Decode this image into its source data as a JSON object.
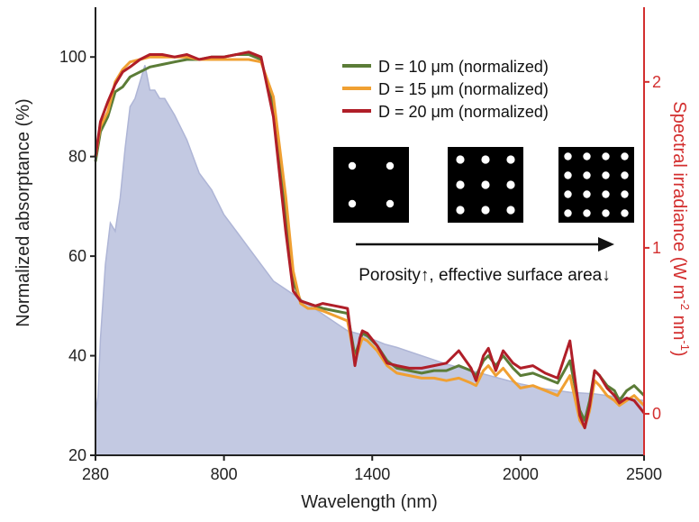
{
  "chart_data": {
    "type": "line",
    "xlabel": "Wavelength (nm)",
    "ylabel": "Normalized absorptance (%)",
    "y2label_parts": [
      "Spectral irradiance (W m",
      "-2",
      " nm",
      "-1",
      ")"
    ],
    "xlim": [
      280,
      2500
    ],
    "ylim": [
      20,
      110
    ],
    "y2lim": [
      -0.25,
      2.45
    ],
    "x_ticks": [
      280,
      800,
      1400,
      2000,
      2500
    ],
    "y_ticks": [
      20,
      40,
      60,
      80,
      100
    ],
    "y2_ticks": [
      0,
      1,
      2
    ],
    "colors": {
      "axis": "#222222",
      "y2_axis": "#d32f2f",
      "irradiance_fill": "#c3c9e2",
      "irradiance_line": "#aeb5d6"
    },
    "series": [
      {
        "name": "D = 10 μm (normalized)",
        "color": "#5b7c37",
        "x": [
          280,
          300,
          330,
          360,
          390,
          420,
          460,
          500,
          550,
          600,
          650,
          700,
          750,
          800,
          850,
          900,
          950,
          1000,
          1050,
          1080,
          1110,
          1140,
          1170,
          1200,
          1250,
          1300,
          1330,
          1350,
          1360,
          1380,
          1420,
          1460,
          1500,
          1550,
          1600,
          1650,
          1700,
          1750,
          1800,
          1820,
          1850,
          1870,
          1900,
          1930,
          1970,
          2000,
          2050,
          2100,
          2150,
          2200,
          2240,
          2260,
          2280,
          2300,
          2320,
          2350,
          2380,
          2400,
          2430,
          2460,
          2500
        ],
        "y": [
          79,
          85,
          88,
          93,
          94,
          96,
          97,
          98,
          98.5,
          99,
          99.5,
          99.5,
          100,
          100,
          100.5,
          100.5,
          99.5,
          90,
          68,
          55,
          51,
          50.5,
          50,
          49.5,
          49,
          48.5,
          40,
          43,
          44.5,
          44,
          42,
          39,
          37.5,
          37,
          36.5,
          37,
          37,
          38,
          37,
          36,
          39,
          40,
          38,
          40,
          37.5,
          36,
          36.5,
          35.5,
          34.5,
          39,
          29,
          27,
          31,
          37,
          36,
          34,
          33,
          31,
          33,
          34,
          32
        ]
      },
      {
        "name": "D = 15 μm (normalized)",
        "color": "#f0a032",
        "x": [
          280,
          300,
          330,
          360,
          390,
          420,
          460,
          500,
          550,
          600,
          650,
          700,
          750,
          800,
          850,
          900,
          950,
          1000,
          1050,
          1080,
          1110,
          1140,
          1170,
          1200,
          1250,
          1300,
          1330,
          1350,
          1360,
          1380,
          1420,
          1460,
          1500,
          1550,
          1600,
          1650,
          1700,
          1750,
          1800,
          1820,
          1850,
          1870,
          1900,
          1930,
          1970,
          2000,
          2050,
          2100,
          2150,
          2200,
          2240,
          2260,
          2280,
          2300,
          2320,
          2350,
          2380,
          2400,
          2430,
          2460,
          2500
        ],
        "y": [
          80,
          86,
          89,
          95,
          97.5,
          99,
          99.5,
          100,
          100,
          100,
          100,
          99.5,
          99.5,
          99.5,
          99.5,
          99.5,
          99,
          92,
          72,
          57,
          50.5,
          49.5,
          49.5,
          49,
          48,
          47,
          39,
          42,
          43.5,
          43,
          41,
          38,
          36.5,
          36,
          35.5,
          35.5,
          35,
          35.5,
          34.5,
          34,
          37,
          38,
          36,
          37.5,
          35,
          33.5,
          34,
          33,
          32,
          36,
          27,
          25.5,
          29,
          35,
          34,
          32,
          31,
          30,
          31,
          32,
          30
        ]
      },
      {
        "name": "D = 20 μm (normalized)",
        "color": "#b01e28",
        "x": [
          280,
          300,
          330,
          360,
          390,
          420,
          460,
          500,
          550,
          600,
          650,
          700,
          750,
          800,
          850,
          900,
          950,
          1000,
          1050,
          1080,
          1110,
          1140,
          1170,
          1200,
          1250,
          1300,
          1330,
          1350,
          1360,
          1380,
          1420,
          1460,
          1500,
          1550,
          1600,
          1650,
          1700,
          1750,
          1800,
          1820,
          1850,
          1870,
          1900,
          1930,
          1970,
          2000,
          2050,
          2100,
          2150,
          2200,
          2240,
          2260,
          2280,
          2300,
          2320,
          2350,
          2380,
          2400,
          2430,
          2460,
          2500
        ],
        "y": [
          80,
          87,
          91,
          94.5,
          97,
          98,
          99.5,
          100.5,
          100.5,
          100,
          100.5,
          99.5,
          100,
          100,
          100.5,
          101,
          100,
          88,
          65,
          53,
          51,
          50.5,
          50,
          50.5,
          50,
          49.5,
          38,
          43.5,
          45,
          44.5,
          42,
          38.5,
          38,
          37.5,
          37.5,
          38,
          38.5,
          41,
          37.5,
          35,
          40,
          41.5,
          37,
          41,
          38.5,
          37.5,
          38,
          36.5,
          35.5,
          43,
          28,
          25.5,
          30,
          37,
          36,
          33.5,
          32,
          30.5,
          31.5,
          31,
          28.5
        ]
      },
      {
        "name": "",
        "axis": "right",
        "color": "#c3c9e2",
        "x": [
          280,
          290,
          300,
          320,
          340,
          360,
          380,
          400,
          420,
          440,
          460,
          480,
          500,
          520,
          540,
          560,
          600,
          650,
          700,
          750,
          800,
          850,
          900,
          950,
          1000,
          1050,
          1100,
          1150,
          1200,
          1250,
          1300,
          1350,
          1400,
          1450,
          1500,
          1600,
          1700,
          1800,
          1900,
          2000,
          2100,
          2200,
          2300,
          2400,
          2500
        ],
        "y": [
          0,
          0.1,
          0.45,
          0.9,
          1.15,
          1.1,
          1.3,
          1.6,
          1.85,
          1.9,
          2.0,
          2.1,
          1.95,
          1.95,
          1.9,
          1.9,
          1.8,
          1.65,
          1.45,
          1.35,
          1.2,
          1.1,
          1.0,
          0.9,
          0.8,
          0.75,
          0.7,
          0.65,
          0.6,
          0.55,
          0.5,
          0.48,
          0.45,
          0.42,
          0.4,
          0.35,
          0.3,
          0.26,
          0.22,
          0.18,
          0.15,
          0.13,
          0.12,
          0.1,
          0.08
        ]
      }
    ],
    "annotation": {
      "text": "Porosity↑, effective surface area↓",
      "direction": "right"
    },
    "insets": [
      {
        "name": "sparse",
        "grid": 2
      },
      {
        "name": "medium",
        "grid": 3
      },
      {
        "name": "dense",
        "grid": 4
      }
    ]
  }
}
